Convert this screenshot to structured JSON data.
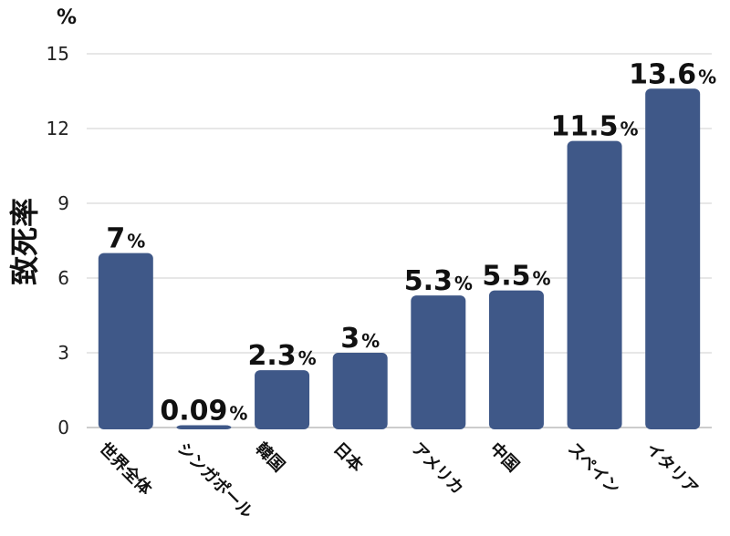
{
  "chart_data": {
    "type": "bar",
    "unit_label": "%",
    "ylabel": "致死率",
    "categories": [
      "世界全体",
      "シンガポール",
      "韓国",
      "日本",
      "アメリカ",
      "中国",
      "スペイン",
      "イタリア"
    ],
    "values": [
      7,
      0.09,
      2.3,
      3,
      5.3,
      5.5,
      11.5,
      13.6
    ],
    "value_labels": [
      "7",
      "0.09",
      "2.3",
      "3",
      "5.3",
      "5.5",
      "11.5",
      "13.6"
    ],
    "value_suffix": "%",
    "yticks": [
      "0",
      "3",
      "6",
      "9",
      "12",
      "15"
    ],
    "ylim": [
      0,
      15
    ],
    "grid": true,
    "bar_color": "#3f5888"
  }
}
